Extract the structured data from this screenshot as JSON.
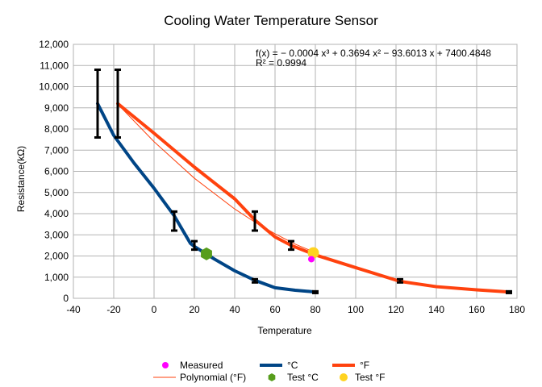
{
  "chart_data": {
    "type": "line",
    "title": "Cooling Water Temperature Sensor",
    "xlabel": "Temperature",
    "ylabel": "Resistance(kΩ)",
    "xlim": [
      -40,
      180
    ],
    "ylim": [
      0,
      12000
    ],
    "x_ticks": [
      "-40",
      "-20",
      "0",
      "20",
      "40",
      "60",
      "80",
      "100",
      "120",
      "140",
      "160",
      "180"
    ],
    "y_ticks": [
      "0",
      "1,000",
      "2,000",
      "3,000",
      "4,000",
      "5,000",
      "6,000",
      "7,000",
      "8,000",
      "9,000",
      "10,000",
      "11,000",
      "12,000"
    ],
    "grid": true,
    "legend_position": "bottom",
    "trendline": {
      "equation": "f(x) = − 0.0004 x³ + 0.3694 x² − 93.6013 x + 7400.4848",
      "r_squared": "R² = 0.9994"
    },
    "series": [
      {
        "name": "°C",
        "color": "#004586",
        "x": [
          -28,
          -20,
          -10,
          0,
          10,
          18,
          20,
          25,
          30,
          40,
          50,
          60,
          70,
          80
        ],
        "y": [
          9200,
          7700,
          6400,
          5200,
          3900,
          2600,
          2450,
          2150,
          1850,
          1300,
          850,
          500,
          380,
          300
        ],
        "error_bars": [
          {
            "x": -28,
            "low": 7600,
            "high": 10800
          },
          {
            "x": -18,
            "low": 7600,
            "high": 10800
          },
          {
            "x": 10,
            "low": 3200,
            "high": 4100
          },
          {
            "x": 20,
            "low": 2300,
            "high": 2700
          },
          {
            "x": 50,
            "low": 750,
            "high": 900
          },
          {
            "x": 80,
            "low": 250,
            "high": 330
          }
        ]
      },
      {
        "name": "°F",
        "color": "#ff420e",
        "x": [
          -18,
          0,
          20,
          40,
          50,
          60,
          68,
          80,
          100,
          122,
          140,
          160,
          176
        ],
        "y": [
          9200,
          7800,
          6200,
          4700,
          3700,
          2900,
          2500,
          2050,
          1450,
          800,
          550,
          400,
          300
        ],
        "error_bars": [
          {
            "x": 50,
            "low": 3200,
            "high": 4100
          },
          {
            "x": 68,
            "low": 2300,
            "high": 2700
          },
          {
            "x": 122,
            "low": 750,
            "high": 900
          },
          {
            "x": 176,
            "low": 250,
            "high": 330
          }
        ]
      },
      {
        "name": "Polynomial (°F)",
        "color": "#ff420e",
        "x": [
          -18,
          0,
          20,
          40,
          50,
          60,
          70,
          80
        ],
        "y": [
          9172,
          7400,
          5674,
          4220,
          3600,
          3050,
          2560,
          2160
        ]
      },
      {
        "name": "Measured",
        "color": "#ff00ff",
        "x": [
          78
        ],
        "y": [
          1850
        ]
      },
      {
        "name": "Test °C",
        "color": "#579d1c",
        "x": [
          26
        ],
        "y": [
          2100
        ]
      },
      {
        "name": "Test °F",
        "color": "#ffd320",
        "x": [
          79
        ],
        "y": [
          2150
        ]
      }
    ]
  }
}
